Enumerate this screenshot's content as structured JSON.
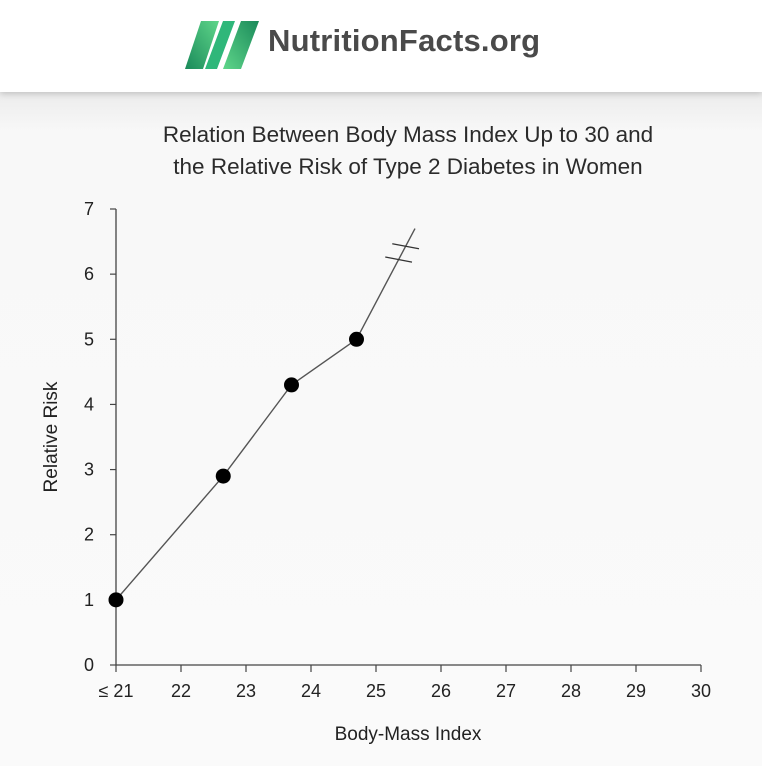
{
  "header": {
    "brand_name": "NutritionFacts.org",
    "logo_icon": "nutritionfacts-n-logo-icon",
    "accent_dark": "#1a8a5a",
    "accent_light": "#5fd68a",
    "text_color": "#4a4a4a"
  },
  "chart_data": {
    "type": "line",
    "title_lines": [
      "Relation Between Body Mass Index Up to 30 and",
      "the Relative Risk of Type 2 Diabetes in Women"
    ],
    "xlabel": "Body-Mass Index",
    "ylabel": "Relative Risk",
    "x_ticks": [
      21,
      22,
      23,
      24,
      25,
      26,
      27,
      28,
      29,
      30
    ],
    "x_tick_labels": [
      "≤ 21",
      "22",
      "23",
      "24",
      "25",
      "26",
      "27",
      "28",
      "29",
      "30"
    ],
    "y_ticks": [
      0,
      1,
      2,
      3,
      4,
      5,
      6,
      7
    ],
    "y_tick_labels": [
      "0",
      "1",
      "2",
      "3",
      "4",
      "5",
      "6",
      "7"
    ],
    "xlim": [
      21,
      30
    ],
    "ylim": [
      0,
      7
    ],
    "series": [
      {
        "points": [
          {
            "x": 21.0,
            "y": 1.0
          },
          {
            "x": 22.65,
            "y": 2.9
          },
          {
            "x": 23.7,
            "y": 4.3
          },
          {
            "x": 24.7,
            "y": 5.0
          }
        ],
        "continuation": {
          "x": 25.6,
          "y": 6.7
        },
        "axis_break": true
      }
    ],
    "grid": false,
    "legend": "none",
    "line_color": "#555555",
    "marker_color": "#000000"
  }
}
